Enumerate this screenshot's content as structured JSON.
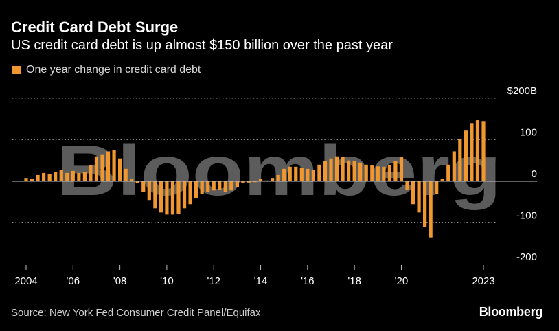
{
  "header": {
    "title": "Credit Card Debt Surge",
    "subtitle": "US credit card debt is up almost $150 billion over the past year"
  },
  "footer": {
    "source": "Source: New York Fed Consumer Credit Panel/Equifax",
    "brand": "Bloomberg"
  },
  "watermark": "Bloomberg",
  "colors": {
    "bar": "#f0982f",
    "background": "#000000",
    "gridline": "#8c8c8c",
    "zero_line": "#bfbfbf"
  },
  "chart_data": {
    "type": "bar",
    "title": "Credit Card Debt Surge",
    "subtitle": "US credit card debt is up almost $150 billion over the past year",
    "xlabel": "",
    "ylabel": "",
    "ylim": [
      -200,
      200
    ],
    "y_ticks": [
      {
        "value": 200,
        "label": "$200B"
      },
      {
        "value": 100,
        "label": "100"
      },
      {
        "value": 0,
        "label": "0"
      },
      {
        "value": -100,
        "label": "-100"
      },
      {
        "value": -200,
        "label": "-200"
      }
    ],
    "x_ticks": [
      {
        "value": 2004.0,
        "label": "2004"
      },
      {
        "value": 2006.0,
        "label": "'06"
      },
      {
        "value": 2008.0,
        "label": "'08"
      },
      {
        "value": 2010.0,
        "label": "'10"
      },
      {
        "value": 2012.0,
        "label": "'12"
      },
      {
        "value": 2014.0,
        "label": "'14"
      },
      {
        "value": 2016.0,
        "label": "'16"
      },
      {
        "value": 2018.0,
        "label": "'18"
      },
      {
        "value": 2020.0,
        "label": "'20"
      },
      {
        "value": 2023.5,
        "label": "2023"
      }
    ],
    "xlim": [
      2003.75,
      2024.75
    ],
    "grid": true,
    "legend": {
      "position": "top-left",
      "entries": [
        "One year change in credit card debt"
      ]
    },
    "series": [
      {
        "name": "One year change in credit card debt",
        "x": [
          2004.0,
          2004.25,
          2004.5,
          2004.75,
          2005.0,
          2005.25,
          2005.5,
          2005.75,
          2006.0,
          2006.25,
          2006.5,
          2006.75,
          2007.0,
          2007.25,
          2007.5,
          2007.75,
          2008.0,
          2008.25,
          2008.5,
          2008.75,
          2009.0,
          2009.25,
          2009.5,
          2009.75,
          2010.0,
          2010.25,
          2010.5,
          2010.75,
          2011.0,
          2011.25,
          2011.5,
          2011.75,
          2012.0,
          2012.25,
          2012.5,
          2012.75,
          2013.0,
          2013.25,
          2013.5,
          2013.75,
          2014.0,
          2014.25,
          2014.5,
          2014.75,
          2015.0,
          2015.25,
          2015.5,
          2015.75,
          2016.0,
          2016.25,
          2016.5,
          2016.75,
          2017.0,
          2017.25,
          2017.5,
          2017.75,
          2018.0,
          2018.25,
          2018.5,
          2018.75,
          2019.0,
          2019.25,
          2019.5,
          2019.75,
          2020.0,
          2020.25,
          2020.5,
          2020.75,
          2021.0,
          2021.25,
          2021.5,
          2021.75,
          2022.0,
          2022.25,
          2022.5,
          2022.75,
          2023.0,
          2023.25,
          2023.5
        ],
        "values": [
          8,
          5,
          15,
          20,
          18,
          22,
          28,
          20,
          25,
          20,
          22,
          38,
          60,
          65,
          72,
          75,
          55,
          30,
          5,
          -5,
          -25,
          -45,
          -65,
          -75,
          -80,
          -80,
          -78,
          -65,
          -55,
          -40,
          -30,
          -25,
          -22,
          -20,
          -25,
          -22,
          -15,
          -5,
          -3,
          -2,
          5,
          2,
          8,
          15,
          30,
          35,
          35,
          32,
          30,
          28,
          40,
          48,
          55,
          60,
          58,
          50,
          48,
          45,
          40,
          38,
          36,
          35,
          38,
          48,
          58,
          -20,
          -55,
          -75,
          -110,
          -135,
          -30,
          5,
          40,
          72,
          102,
          122,
          140,
          147,
          145
        ]
      }
    ]
  }
}
